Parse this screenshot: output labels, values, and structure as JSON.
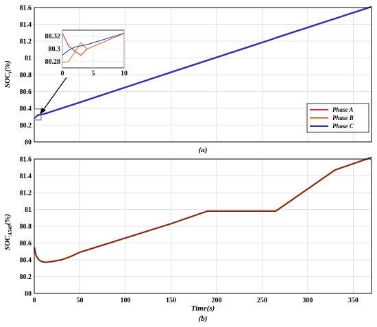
{
  "chart_data": [
    {
      "type": "line",
      "label": "(a)",
      "ylabel": "SOC",
      "ylabel_sub": "t",
      "ylabel_suffix": "(%)",
      "xlim": [
        0,
        370
      ],
      "ylim": [
        80,
        81.6
      ],
      "xticks": [],
      "yticks": [
        "80",
        "80.2",
        "80.4",
        "80.6",
        "80.8",
        "81",
        "81.2",
        "81.4",
        "81.6"
      ],
      "grid": true,
      "legend_position": "bottom-right",
      "series": [
        {
          "name": "Phase A",
          "color": "#e0202a",
          "x": [
            0,
            2,
            4,
            10,
            370
          ],
          "y": [
            80.28,
            80.3,
            80.32,
            80.33,
            81.61
          ]
        },
        {
          "name": "Phase B",
          "color": "#e8752a",
          "x": [
            0,
            2,
            4,
            10,
            370
          ],
          "y": [
            80.28,
            80.3,
            80.32,
            80.33,
            81.61
          ]
        },
        {
          "name": "Phase C",
          "color": "#1f2fd1",
          "x": [
            0,
            2,
            4,
            10,
            50,
            150,
            260,
            265,
            370
          ],
          "y": [
            80.28,
            80.3,
            80.32,
            80.33,
            80.47,
            80.83,
            81.22,
            81.24,
            81.61
          ]
        }
      ],
      "inset": {
        "xlim": [
          0,
          10
        ],
        "ylim": [
          80.27,
          80.33
        ],
        "xticks": [
          "0",
          "5",
          "10"
        ],
        "yticks": [
          "80.28",
          "80.3",
          "80.32"
        ],
        "series": [
          {
            "name": "Phase A",
            "color": "#e0202a",
            "x": [
              0,
              1,
              2,
              3,
              4,
              10
            ],
            "y": [
              80.325,
              80.305,
              80.297,
              80.29,
              80.3,
              80.325
            ]
          },
          {
            "name": "Phase B",
            "color": "#e8752a",
            "x": [
              0,
              1,
              2,
              3,
              4,
              10
            ],
            "y": [
              80.278,
              80.28,
              80.295,
              80.31,
              80.3,
              80.325
            ]
          },
          {
            "name": "Phase C",
            "color": "#1f2fd1",
            "x": [
              0,
              1,
              2,
              4,
              10
            ],
            "y": [
              80.29,
              80.298,
              80.303,
              80.307,
              80.325
            ]
          }
        ]
      }
    },
    {
      "type": "line",
      "label": "(b)",
      "ylabel": "SOC",
      "ylabel_sub": "A540",
      "ylabel_suffix": "(%)",
      "xlabel": "Time(s)",
      "xlim": [
        0,
        370
      ],
      "ylim": [
        80,
        81.6
      ],
      "xticks": [
        "0",
        "50",
        "100",
        "150",
        "200",
        "250",
        "300",
        "350"
      ],
      "yticks": [
        "80",
        "80.2",
        "80.4",
        "80.6",
        "80.8",
        "81",
        "81.2",
        "81.4",
        "81.6"
      ],
      "grid": true,
      "series": [
        {
          "color": "#8b2a0e",
          "x": [
            0,
            2,
            5,
            8,
            12,
            20,
            30,
            40,
            50,
            100,
            150,
            190,
            265,
            330,
            370
          ],
          "y": [
            80.55,
            80.45,
            80.4,
            80.38,
            80.37,
            80.38,
            80.4,
            80.44,
            80.49,
            80.66,
            80.83,
            80.98,
            80.98,
            81.47,
            81.62
          ]
        }
      ]
    }
  ]
}
